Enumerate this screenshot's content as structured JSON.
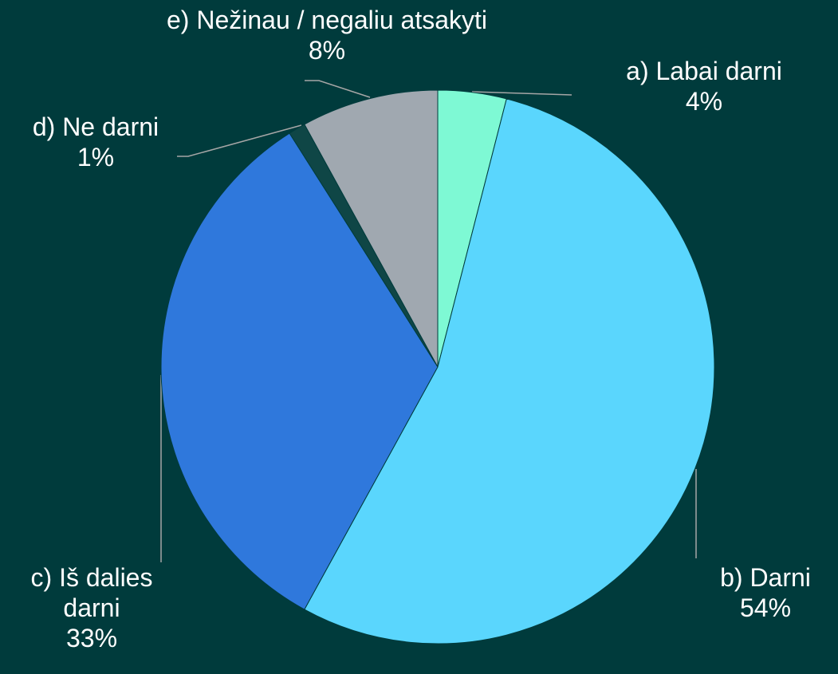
{
  "chart_data": {
    "type": "pie",
    "categories": [
      "a) Labai darni",
      "b) Darni",
      "c) Iš dalies darni",
      "d) Ne darni",
      "e) Nežinau / negaliu atsakyti"
    ],
    "values": [
      4,
      54,
      33,
      1,
      8
    ],
    "value_labels": [
      "4%",
      "54%",
      "33%",
      "1%",
      "8%"
    ],
    "colors": [
      "#7ef9d4",
      "#5ad6fd",
      "#2f78dc",
      "#0f4646",
      "#a0a8b0"
    ]
  }
}
